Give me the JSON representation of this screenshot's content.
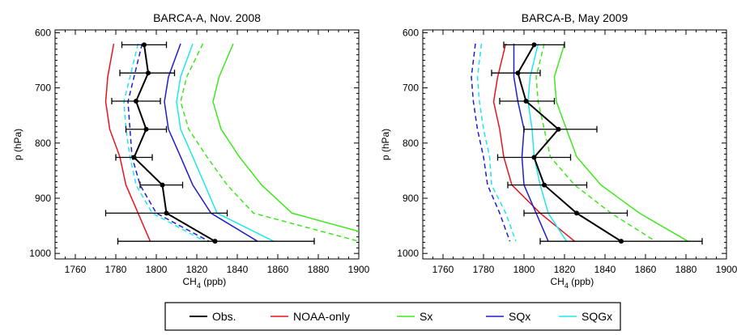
{
  "chart_data": [
    {
      "type": "line",
      "title": "BARCA-A, Nov. 2008",
      "xlabel_main": "CH",
      "xlabel_sub": "4",
      "xlabel_unit": " (ppb)",
      "ylabel": "p (hPa)",
      "xlim": [
        1750,
        1900
      ],
      "ylim": [
        1010,
        595
      ],
      "xticks": [
        "1760",
        "1780",
        "1800",
        "1820",
        "1840",
        "1860",
        "1880",
        "1900"
      ],
      "yticks": [
        "600",
        "700",
        "800",
        "900",
        "1000"
      ],
      "xtick_values": [
        1760,
        1780,
        1800,
        1820,
        1840,
        1860,
        1880,
        1900
      ],
      "ytick_values": [
        600,
        700,
        800,
        900,
        1000
      ],
      "obs": {
        "name": "Obs.",
        "p": [
          622,
          673,
          724,
          775,
          826,
          876,
          927,
          978
        ],
        "ch4": [
          1794,
          1796,
          1790,
          1795,
          1789,
          1803,
          1805,
          1829
        ],
        "err_low": [
          1783,
          1782,
          1778,
          1785,
          1780,
          1792,
          1775,
          1781
        ],
        "err_high": [
          1805,
          1809,
          1802,
          1805,
          1798,
          1813,
          1835,
          1878
        ]
      },
      "series": [
        {
          "name": "NOAA-only",
          "color": "#e8141b",
          "style": "solid",
          "p": [
            620,
            680,
            725,
            775,
            825,
            876,
            927,
            978
          ],
          "ch4": [
            1779,
            1776,
            1775,
            1777,
            1782,
            1785,
            1791,
            1797
          ]
        },
        {
          "name": "Sx",
          "color": "#3ee81e",
          "style": "solid",
          "p": [
            620,
            680,
            725,
            775,
            825,
            876,
            927,
            960,
            978
          ],
          "ch4": [
            1838,
            1831,
            1828,
            1832,
            1841,
            1852,
            1867,
            1900,
            1915
          ]
        },
        {
          "name": "Sx",
          "color": "#3ee81e",
          "style": "dash",
          "p": [
            620,
            680,
            725,
            775,
            825,
            876,
            927,
            978
          ],
          "ch4": [
            1823,
            1815,
            1812,
            1816,
            1825,
            1835,
            1848,
            1900
          ]
        },
        {
          "name": "SQx",
          "color": "#1e1ecc",
          "style": "solid",
          "p": [
            620,
            680,
            725,
            775,
            825,
            876,
            927,
            978
          ],
          "ch4": [
            1812,
            1806,
            1804,
            1806,
            1812,
            1818,
            1827,
            1850
          ]
        },
        {
          "name": "SQx",
          "color": "#1e1ecc",
          "style": "dash",
          "p": [
            620,
            680,
            725,
            775,
            825,
            876,
            927,
            978
          ],
          "ch4": [
            1793,
            1789,
            1786,
            1787,
            1788,
            1792,
            1800,
            1826
          ]
        },
        {
          "name": "SQGx",
          "color": "#1ee8e8",
          "style": "solid",
          "p": [
            620,
            680,
            725,
            775,
            825,
            876,
            927,
            978
          ],
          "ch4": [
            1818,
            1812,
            1810,
            1812,
            1818,
            1824,
            1830,
            1858
          ]
        },
        {
          "name": "SQGx",
          "color": "#1ee8e8",
          "style": "dash",
          "p": [
            620,
            680,
            725,
            775,
            825,
            876,
            927,
            978
          ],
          "ch4": [
            1791,
            1787,
            1784,
            1785,
            1787,
            1790,
            1798,
            1824
          ]
        }
      ]
    },
    {
      "type": "line",
      "title": "BARCA-B, May 2009",
      "xlabel_main": "CH",
      "xlabel_sub": "4",
      "xlabel_unit": " (ppb)",
      "ylabel": "p (hPa)",
      "xlim": [
        1750,
        1900
      ],
      "ylim": [
        1010,
        595
      ],
      "xticks": [
        "1760",
        "1780",
        "1800",
        "1820",
        "1840",
        "1860",
        "1880",
        "1900"
      ],
      "yticks": [
        "600",
        "700",
        "800",
        "900",
        "1000"
      ],
      "xtick_values": [
        1760,
        1780,
        1800,
        1820,
        1840,
        1860,
        1880,
        1900
      ],
      "ytick_values": [
        600,
        700,
        800,
        900,
        1000
      ],
      "obs": {
        "name": "Obs.",
        "p": [
          622,
          673,
          724,
          775,
          826,
          876,
          927,
          978
        ],
        "ch4": [
          1805,
          1797,
          1801,
          1817,
          1805,
          1810,
          1826,
          1848
        ],
        "err_low": [
          1790,
          1784,
          1788,
          1800,
          1787,
          1792,
          1800,
          1808
        ],
        "err_high": [
          1820,
          1808,
          1815,
          1836,
          1823,
          1831,
          1851,
          1888
        ]
      },
      "series": [
        {
          "name": "NOAA-only",
          "color": "#e8141b",
          "style": "solid",
          "p": [
            620,
            680,
            725,
            775,
            825,
            876,
            927,
            978
          ],
          "ch4": [
            1791,
            1787,
            1785,
            1788,
            1790,
            1794,
            1808,
            1825
          ]
        },
        {
          "name": "Sx",
          "color": "#3ee81e",
          "style": "solid",
          "p": [
            620,
            680,
            725,
            775,
            825,
            876,
            927,
            978
          ],
          "ch4": [
            1820,
            1815,
            1816,
            1821,
            1826,
            1838,
            1857,
            1881
          ]
        },
        {
          "name": "Sx",
          "color": "#3ee81e",
          "style": "dash",
          "p": [
            620,
            680,
            725,
            775,
            825,
            876,
            927,
            978
          ],
          "ch4": [
            1810,
            1806,
            1807,
            1810,
            1813,
            1825,
            1843,
            1865
          ]
        },
        {
          "name": "SQx",
          "color": "#1e1ecc",
          "style": "solid",
          "p": [
            620,
            680,
            725,
            775,
            825,
            876,
            927,
            978
          ],
          "ch4": [
            1795,
            1795,
            1797,
            1800,
            1799,
            1800,
            1806,
            1812
          ]
        },
        {
          "name": "SQx",
          "color": "#1e1ecc",
          "style": "dash",
          "p": [
            620,
            680,
            725,
            775,
            825,
            876,
            927,
            978
          ],
          "ch4": [
            1776,
            1774,
            1775,
            1777,
            1780,
            1782,
            1788,
            1793
          ]
        },
        {
          "name": "SQGx",
          "color": "#1ee8e8",
          "style": "solid",
          "p": [
            620,
            680,
            725,
            775,
            825,
            876,
            927,
            978
          ],
          "ch4": [
            1807,
            1803,
            1802,
            1804,
            1805,
            1808,
            1812,
            1821
          ]
        },
        {
          "name": "SQGx",
          "color": "#1ee8e8",
          "style": "dash",
          "p": [
            620,
            680,
            725,
            775,
            825,
            876,
            927,
            978
          ],
          "ch4": [
            1779,
            1777,
            1778,
            1780,
            1783,
            1784,
            1791,
            1796
          ]
        }
      ]
    }
  ],
  "legend": {
    "items": [
      {
        "label": "Obs.",
        "color": "#000000"
      },
      {
        "label": "NOAA-only",
        "color": "#e8141b"
      },
      {
        "label": "Sx",
        "color": "#3ee81e"
      },
      {
        "label": "SQx",
        "color": "#1e1ecc"
      },
      {
        "label": "SQGx",
        "color": "#1ee8e8"
      }
    ]
  }
}
